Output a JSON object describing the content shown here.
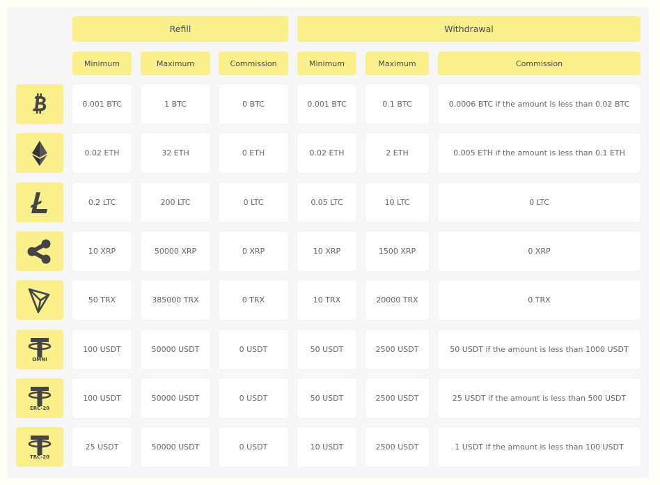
{
  "groups": {
    "refill": "Refill",
    "withdrawal": "Withdrawal"
  },
  "columns": {
    "refill_min": "Minimum",
    "refill_max": "Maximum",
    "refill_comm": "Commission",
    "withdraw_min": "Minimum",
    "withdraw_max": "Maximum",
    "withdraw_comm": "Commission"
  },
  "rows": [
    {
      "icon": "bitcoin-icon",
      "icon_label": "",
      "refill_min": "0.001 BTC",
      "refill_max": "1 BTC",
      "refill_comm": "0 BTC",
      "withdraw_min": "0.001 BTC",
      "withdraw_max": "0.1 BTC",
      "withdraw_comm": "0.0006 BTC if the amount is less than 0.02 BTC"
    },
    {
      "icon": "ethereum-icon",
      "icon_label": "",
      "refill_min": "0.02 ETH",
      "refill_max": "32 ETH",
      "refill_comm": "0 ETH",
      "withdraw_min": "0.02 ETH",
      "withdraw_max": "2 ETH",
      "withdraw_comm": "0.005 ETH if the amount is less than 0.1 ETH"
    },
    {
      "icon": "litecoin-icon",
      "icon_label": "",
      "refill_min": "0.2 LTC",
      "refill_max": "200 LTC",
      "refill_comm": "0 LTC",
      "withdraw_min": "0.05 LTC",
      "withdraw_max": "10 LTC",
      "withdraw_comm": "0 LTC"
    },
    {
      "icon": "ripple-icon",
      "icon_label": "",
      "refill_min": "10 XRP",
      "refill_max": "50000 XRP",
      "refill_comm": "0 XRP",
      "withdraw_min": "10 XRP",
      "withdraw_max": "1500 XRP",
      "withdraw_comm": "0 XRP"
    },
    {
      "icon": "tron-icon",
      "icon_label": "",
      "refill_min": "50 TRX",
      "refill_max": "385000 TRX",
      "refill_comm": "0 TRX",
      "withdraw_min": "10 TRX",
      "withdraw_max": "20000 TRX",
      "withdraw_comm": "0 TRX"
    },
    {
      "icon": "tether-icon",
      "icon_label": "OMNI",
      "refill_min": "100 USDT",
      "refill_max": "50000 USDT",
      "refill_comm": "0 USDT",
      "withdraw_min": "50 USDT",
      "withdraw_max": "2500 USDT",
      "withdraw_comm": "50 USDT if the amount is less than 1000 USDT"
    },
    {
      "icon": "tether-icon",
      "icon_label": "ERC-20",
      "refill_min": "100 USDT",
      "refill_max": "50000 USDT",
      "refill_comm": "0 USDT",
      "withdraw_min": "50 USDT",
      "withdraw_max": "2500 USDT",
      "withdraw_comm": "25 USDT if the amount is less than 500 USDT"
    },
    {
      "icon": "tether-icon",
      "icon_label": "TRC-20",
      "refill_min": "25 USDT",
      "refill_max": "50000 USDT",
      "refill_comm": "0 USDT",
      "withdraw_min": "10 USDT",
      "withdraw_max": "2500 USDT",
      "withdraw_comm": "1 USDT if the amount is less than 100 USDT"
    }
  ],
  "colors": {
    "accent": "#f9ef8c",
    "cell": "#ffffff",
    "panel": "#f7f7f7",
    "icon": "#444444"
  }
}
